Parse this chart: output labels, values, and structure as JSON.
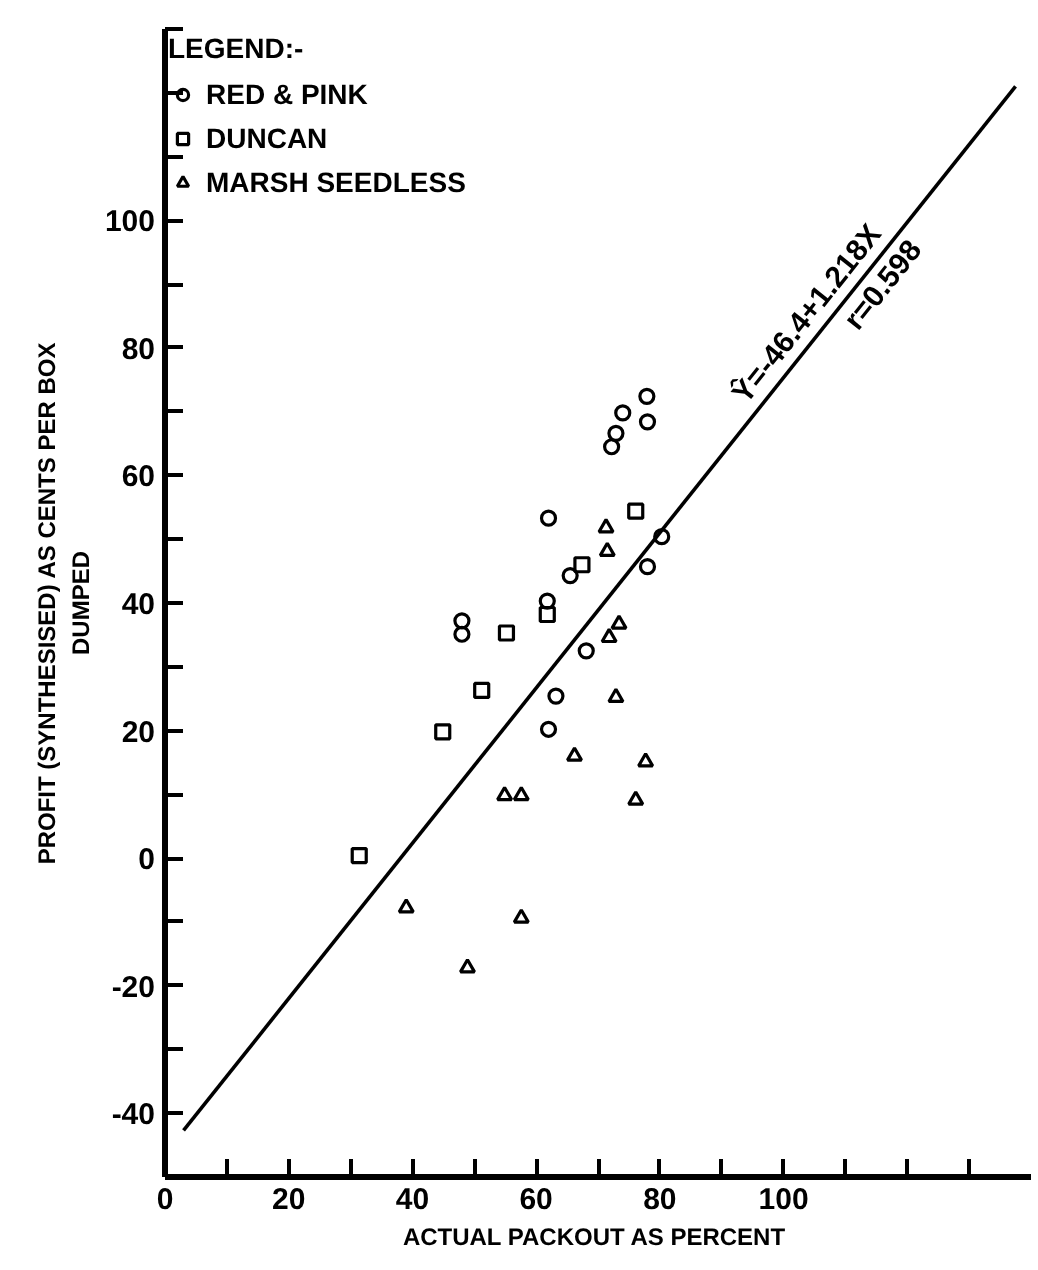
{
  "chart_data": {
    "type": "scatter",
    "xlabel": "ACTUAL  PACKOUT AS PERCENT",
    "ylabel": "PROFIT (SYNTHESISED) AS CENTS PER BOX\nDUMPED",
    "legend_title": "LEGEND:-",
    "legend": "top left",
    "grid": false,
    "xlim": [
      0,
      140
    ],
    "ylim": [
      -50,
      130
    ],
    "xticks": [
      0,
      {
        "value": 10,
        "label": null
      },
      20,
      {
        "value": 30,
        "label": null
      },
      40,
      {
        "value": 50,
        "label": null
      },
      60,
      {
        "value": 70,
        "label": null
      },
      80,
      {
        "value": 90,
        "label": null
      },
      100,
      {
        "value": 110,
        "label": null
      },
      {
        "value": 120,
        "label": null
      },
      {
        "value": 130,
        "label": null
      }
    ],
    "yticks": [
      {
        "value": -50,
        "label": null
      },
      -40,
      {
        "value": -30,
        "label": null
      },
      -20,
      {
        "value": -10,
        "label": null
      },
      0,
      {
        "value": 10,
        "label": null
      },
      20,
      {
        "value": 30,
        "label": null
      },
      40,
      {
        "value": 50,
        "label": null
      },
      60,
      {
        "value": 70,
        "label": null
      },
      80,
      {
        "value": 90,
        "label": null
      },
      100,
      {
        "value": 110,
        "label": null
      },
      {
        "value": 120,
        "label": null
      },
      {
        "value": 130,
        "label": null
      }
    ],
    "series": [
      {
        "name": "RED & PINK",
        "color": "#000000",
        "marker": "circle",
        "x": [
          77.9,
          74,
          78,
          72.9,
          72.2,
          62,
          80.3,
          78,
          65.5,
          61.8,
          48,
          48,
          68.1,
          63.2,
          62
        ],
        "values": [
          72.4,
          69.8,
          68.4,
          66.6,
          64.5,
          53.3,
          50.4,
          45.7,
          44.3,
          40.3,
          37.2,
          35.1,
          32.5,
          25.4,
          20.2
        ]
      },
      {
        "name": "DUNCAN",
        "color": "#000000",
        "marker": "square",
        "x": [
          76.1,
          67.4,
          61.8,
          55.2,
          51.2,
          44.9,
          31.4
        ],
        "values": [
          54.4,
          46,
          38.2,
          35.3,
          26.3,
          19.8,
          0.4
        ]
      },
      {
        "name": "MARSH SEEDLESS",
        "color": "#000000",
        "marker": "triangle",
        "x": [
          71.3,
          71.5,
          73.4,
          71.8,
          72.9,
          66.2,
          77.7,
          76.1,
          54.9,
          57.6,
          57.6,
          48.9,
          39
        ],
        "values": [
          51.8,
          48.1,
          36.7,
          34.6,
          25.2,
          16,
          15.1,
          9.1,
          9.8,
          9.8,
          -9.4,
          -17.2,
          -7.8
        ]
      },
      {
        "type": "line",
        "color": "#000000",
        "line_style": "solid",
        "x": [
          3,
          137.5
        ],
        "values": [
          -42.7,
          121
        ]
      }
    ],
    "annotations": [
      {
        "text": "Ŷ=-46.4+1.218X",
        "x": 106,
        "y": 82.7
      },
      {
        "text": "r=0.598",
        "x": 114,
        "y": 92.4
      }
    ]
  }
}
